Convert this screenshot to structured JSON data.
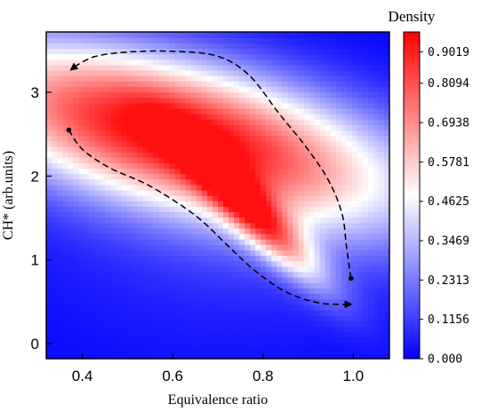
{
  "chart_data": {
    "type": "heatmap",
    "title": "",
    "xlabel": "Equivalence ratio",
    "ylabel": "CH* (arb.units)",
    "xlim": [
      0.32,
      1.08
    ],
    "ylim": [
      -0.18,
      3.72
    ],
    "x_ticks": [
      {
        "value": 0.4,
        "label": "0.4"
      },
      {
        "value": 0.6,
        "label": "0.6"
      },
      {
        "value": 0.8,
        "label": "0.8"
      },
      {
        "value": 1.0,
        "label": "1.0"
      }
    ],
    "y_ticks": [
      {
        "value": 0,
        "label": "0"
      },
      {
        "value": 1,
        "label": "1"
      },
      {
        "value": 2,
        "label": "2"
      },
      {
        "value": 3,
        "label": "3"
      }
    ],
    "colorbar": {
      "title": "Density",
      "min": 0.0,
      "max": 0.96,
      "ticks": [
        {
          "value": 0.9019,
          "label": "0.9019"
        },
        {
          "value": 0.8094,
          "label": "0.8094"
        },
        {
          "value": 0.6938,
          "label": "0.6938"
        },
        {
          "value": 0.5781,
          "label": "0.5781"
        },
        {
          "value": 0.4625,
          "label": "0.4625"
        },
        {
          "value": 0.3469,
          "label": "0.3469"
        },
        {
          "value": 0.2313,
          "label": "0.2313"
        },
        {
          "value": 0.1156,
          "label": "0.1156"
        },
        {
          "value": 0.0,
          "label": "0.000"
        }
      ],
      "colors": [
        "#0000ff",
        "#ffffff",
        "#ff0000"
      ]
    },
    "density_peak": {
      "x": 0.6,
      "y": 2.52,
      "value": 0.93
    },
    "paths": [
      {
        "name": "upper",
        "points": [
          [
            0.995,
            0.78
          ],
          [
            0.985,
            1.15
          ],
          [
            0.975,
            1.55
          ],
          [
            0.945,
            1.95
          ],
          [
            0.895,
            2.35
          ],
          [
            0.835,
            2.75
          ],
          [
            0.77,
            3.2
          ],
          [
            0.7,
            3.43
          ],
          [
            0.6,
            3.49
          ],
          [
            0.5,
            3.48
          ],
          [
            0.43,
            3.43
          ],
          [
            0.39,
            3.33
          ],
          [
            0.375,
            3.27
          ]
        ],
        "start_marker": "dot",
        "end_marker": "arrow"
      },
      {
        "name": "lower",
        "points": [
          [
            0.37,
            2.55
          ],
          [
            0.4,
            2.32
          ],
          [
            0.46,
            2.1
          ],
          [
            0.55,
            1.88
          ],
          [
            0.65,
            1.53
          ],
          [
            0.72,
            1.18
          ],
          [
            0.78,
            0.88
          ],
          [
            0.85,
            0.62
          ],
          [
            0.92,
            0.49
          ],
          [
            0.975,
            0.47
          ],
          [
            0.995,
            0.47
          ]
        ],
        "start_marker": "dot",
        "end_marker": "arrow"
      }
    ]
  }
}
